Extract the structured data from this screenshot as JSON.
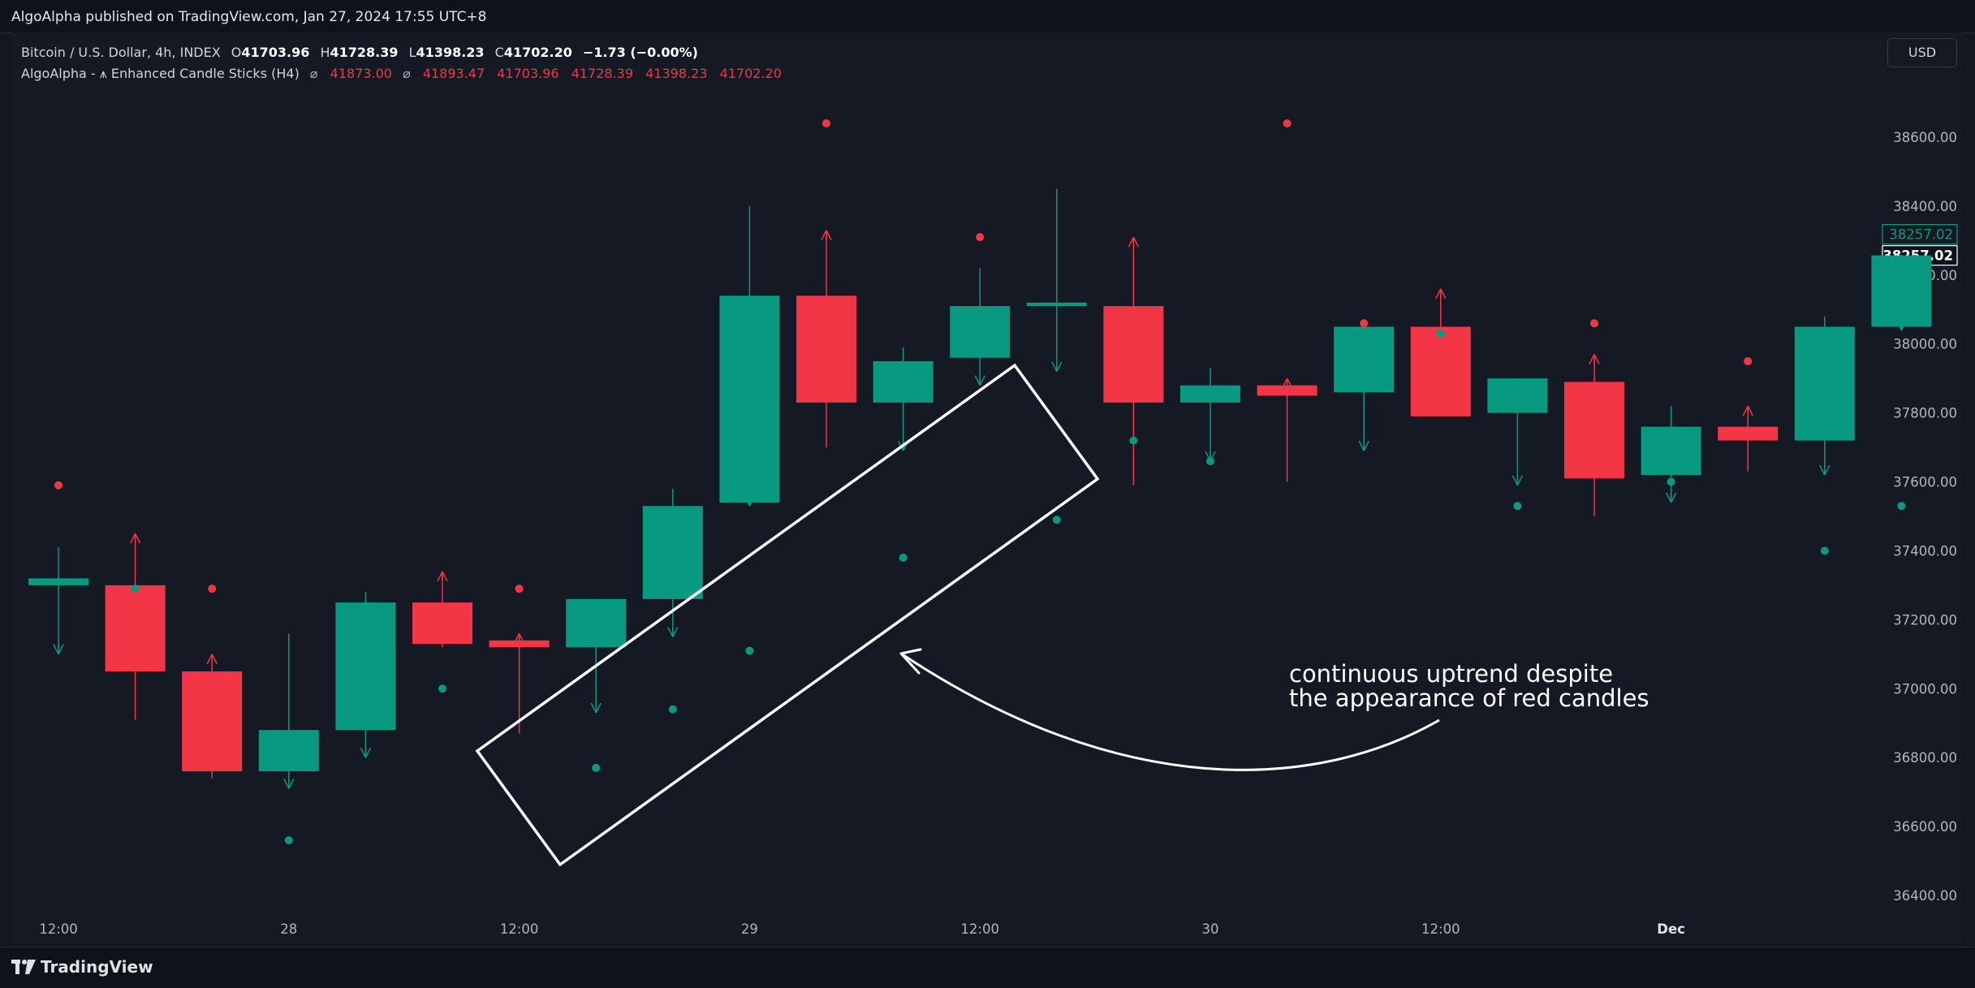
{
  "header": {
    "publisher_line": "AlgoAlpha published on TradingView.com, Jan 27, 2024 17:55 UTC+8"
  },
  "legend": {
    "symbol": "Bitcoin / U.S. Dollar, 4h, INDEX",
    "open_label": "O",
    "open": "41703.96",
    "high_label": "H",
    "high": "41728.39",
    "low_label": "L",
    "low": "41398.23",
    "close_label": "C",
    "close": "41702.20",
    "change": "−1.73 (−0.00%)",
    "indicator_name": "AlgoAlpha - ⩚ Enhanced Candle Sticks (H4)",
    "indicator_symbol_1": "⌀",
    "indicator_value_1": "41873.00",
    "indicator_symbol_2": "⌀",
    "indicator_values": [
      "41893.47",
      "41703.96",
      "41728.39",
      "41398.23",
      "41702.20"
    ]
  },
  "currency_button": "USD",
  "footer": {
    "brand": "TradingView"
  },
  "colors": {
    "background": "#151924",
    "up": "#089981",
    "down": "#f23645",
    "text": "#b2b5be"
  },
  "chart_data": {
    "type": "candlestick",
    "y_ticks": [
      "38600.00",
      "38400.00",
      "38200.00",
      "38000.00",
      "37800.00",
      "37600.00",
      "37400.00",
      "37200.00",
      "37000.00",
      "36800.00",
      "36600.00",
      "36400.00"
    ],
    "ylim": [
      36330,
      38880
    ],
    "x_ticks": [
      {
        "label": "12:00",
        "index": 0,
        "bold": false
      },
      {
        "label": "28",
        "index": 3,
        "bold": false
      },
      {
        "label": "12:00",
        "index": 6,
        "bold": false
      },
      {
        "label": "29",
        "index": 9,
        "bold": false
      },
      {
        "label": "12:00",
        "index": 12,
        "bold": false
      },
      {
        "label": "30",
        "index": 15,
        "bold": false
      },
      {
        "label": "12:00",
        "index": 18,
        "bold": false
      },
      {
        "label": "Dec",
        "index": 21,
        "bold": true
      }
    ],
    "candles": [
      {
        "o": 37300,
        "h": 37410,
        "l": 37100,
        "c": 37320,
        "dot": 37590
      },
      {
        "o": 37300,
        "h": 37450,
        "l": 36910,
        "c": 37050,
        "dot": 37290
      },
      {
        "o": 37050,
        "h": 37100,
        "l": 36740,
        "c": 36760,
        "dot": 37290
      },
      {
        "o": 36760,
        "h": 37160,
        "l": 36710,
        "c": 36880,
        "dot": 36560
      },
      {
        "o": 36880,
        "h": 37280,
        "l": 36800,
        "c": 37250,
        "dot": 37000
      },
      {
        "o": 37250,
        "h": 37340,
        "l": 37120,
        "c": 37130,
        "dot": 37000
      },
      {
        "o": 37140,
        "h": 37160,
        "l": 36870,
        "c": 37120,
        "dot": 37290
      },
      {
        "o": 37120,
        "h": 37260,
        "l": 36930,
        "c": 37260,
        "dot": 36770
      },
      {
        "o": 37260,
        "h": 37580,
        "l": 37150,
        "c": 37530,
        "dot": 36940
      },
      {
        "o": 37540,
        "h": 38400,
        "l": 37530,
        "c": 38140,
        "dot": 37110
      },
      {
        "o": 38140,
        "h": 38330,
        "l": 37700,
        "c": 37830,
        "dot": 38640
      },
      {
        "o": 37830,
        "h": 37990,
        "l": 37690,
        "c": 37950,
        "dot": 37380
      },
      {
        "o": 37960,
        "h": 38220,
        "l": 37880,
        "c": 38110,
        "dot": 38310
      },
      {
        "o": 38110,
        "h": 38450,
        "l": 37920,
        "c": 38120,
        "dot": 37490
      },
      {
        "o": 38110,
        "h": 38310,
        "l": 37590,
        "c": 37830,
        "dot": 37720
      },
      {
        "o": 37830,
        "h": 37930,
        "l": 37660,
        "c": 37880,
        "dot": 37660
      },
      {
        "o": 37880,
        "h": 37900,
        "l": 37600,
        "c": 37850,
        "dot": 38640
      },
      {
        "o": 37860,
        "h": 38050,
        "l": 37690,
        "c": 38050,
        "dot": 38060
      },
      {
        "o": 38050,
        "h": 38160,
        "l": 37790,
        "c": 37790,
        "dot": 38030
      },
      {
        "o": 37800,
        "h": 37900,
        "l": 37590,
        "c": 37900,
        "dot": 37530
      },
      {
        "o": 37890,
        "h": 37970,
        "l": 37500,
        "c": 37610,
        "dot": 38060
      },
      {
        "o": 37620,
        "h": 37820,
        "l": 37540,
        "c": 37760,
        "dot": 37600
      },
      {
        "o": 37760,
        "h": 37820,
        "l": 37630,
        "c": 37720,
        "dot": 37950
      },
      {
        "o": 37720,
        "h": 38080,
        "l": 37620,
        "c": 38050,
        "dot": 37400
      },
      {
        "o": 38050,
        "h": 38260,
        "l": 38040,
        "c": 38257.02,
        "dot": 37530
      }
    ],
    "last_price": "38257.02",
    "last_price_secondary": "38257.02",
    "annotation": {
      "line1": "continuous uptrend despite",
      "line2": "the appearance of red candles"
    }
  }
}
